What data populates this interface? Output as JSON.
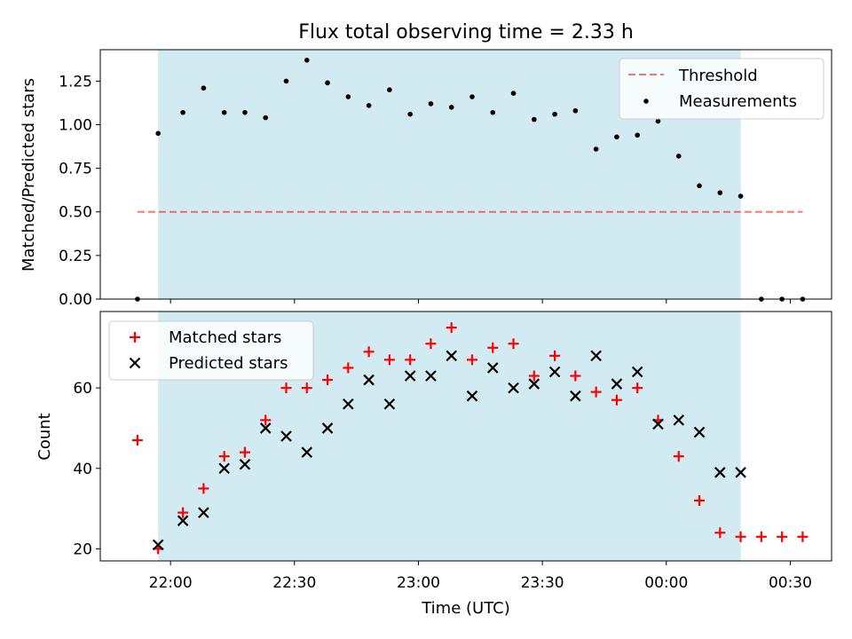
{
  "title": "Flux total observing time = 2.33 h",
  "colors": {
    "shade": "#add8e6",
    "threshold": "#ff0000",
    "measurement": "#000000",
    "matched": "#ff0000",
    "predicted": "#000000"
  },
  "chart_data": [
    {
      "type": "scatter",
      "panel": "top",
      "ylabel": "Matched/Predicted stars",
      "ylim": [
        0,
        1.43
      ],
      "yticks": [
        0.0,
        0.25,
        0.5,
        0.75,
        1.0,
        1.25
      ],
      "ytick_labels": [
        "0.00",
        "0.25",
        "0.50",
        "0.75",
        "1.00",
        "1.25"
      ],
      "shaded_span": [
        "21:57",
        "00:18"
      ],
      "legend_position": "upper right",
      "threshold": {
        "name": "Threshold",
        "value": 0.5,
        "x_range": [
          "21:52",
          "00:33"
        ]
      },
      "series": [
        {
          "name": "Measurements",
          "x": [
            "21:52",
            "21:57",
            "22:03",
            "22:08",
            "22:13",
            "22:18",
            "22:23",
            "22:28",
            "22:33",
            "22:38",
            "22:43",
            "22:48",
            "22:53",
            "22:58",
            "23:03",
            "23:08",
            "23:13",
            "23:18",
            "23:23",
            "23:28",
            "23:33",
            "23:38",
            "23:43",
            "23:48",
            "23:53",
            "23:58",
            "00:03",
            "00:08",
            "00:13",
            "00:18",
            "00:23",
            "00:28",
            "00:33"
          ],
          "y": [
            0.0,
            0.95,
            1.07,
            1.21,
            1.07,
            1.07,
            1.04,
            1.25,
            1.37,
            1.24,
            1.16,
            1.11,
            1.2,
            1.06,
            1.12,
            1.1,
            1.16,
            1.07,
            1.18,
            1.03,
            1.06,
            1.08,
            0.86,
            0.93,
            0.94,
            1.02,
            0.82,
            0.65,
            0.61,
            0.59,
            0.0,
            0.0,
            0.0
          ]
        }
      ]
    },
    {
      "type": "scatter",
      "panel": "bottom",
      "xlabel": "Time (UTC)",
      "ylabel": "Count",
      "ylim": [
        17,
        79
      ],
      "yticks": [
        20,
        40,
        60
      ],
      "ytick_labels": [
        "20",
        "40",
        "60"
      ],
      "xlim": [
        "21:43",
        "00:40"
      ],
      "xticks": [
        "22:00",
        "22:30",
        "23:00",
        "23:30",
        "00:00",
        "00:30"
      ],
      "xtick_labels": [
        "22:00",
        "22:30",
        "23:00",
        "23:30",
        "00:00",
        "00:30"
      ],
      "shaded_span": [
        "21:57",
        "00:18"
      ],
      "legend_position": "upper left",
      "series": [
        {
          "name": "Matched stars",
          "marker": "+",
          "x": [
            "21:52",
            "21:57",
            "22:03",
            "22:08",
            "22:13",
            "22:18",
            "22:23",
            "22:28",
            "22:33",
            "22:38",
            "22:43",
            "22:48",
            "22:53",
            "22:58",
            "23:03",
            "23:08",
            "23:13",
            "23:18",
            "23:23",
            "23:28",
            "23:33",
            "23:38",
            "23:43",
            "23:48",
            "23:53",
            "23:58",
            "00:03",
            "00:08",
            "00:13",
            "00:18",
            "00:23",
            "00:28",
            "00:33"
          ],
          "y": [
            47,
            20,
            29,
            35,
            43,
            44,
            52,
            60,
            60,
            62,
            65,
            69,
            67,
            67,
            71,
            75,
            67,
            70,
            71,
            63,
            68,
            63,
            59,
            57,
            60,
            52,
            43,
            32,
            24,
            23,
            23,
            23,
            23
          ]
        },
        {
          "name": "Predicted stars",
          "marker": "x",
          "x": [
            "21:57",
            "22:03",
            "22:08",
            "22:13",
            "22:18",
            "22:23",
            "22:28",
            "22:33",
            "22:38",
            "22:43",
            "22:48",
            "22:53",
            "22:58",
            "23:03",
            "23:08",
            "23:13",
            "23:18",
            "23:23",
            "23:28",
            "23:33",
            "23:38",
            "23:43",
            "23:48",
            "23:53",
            "23:58",
            "00:03",
            "00:08",
            "00:13",
            "00:18"
          ],
          "y": [
            21,
            27,
            29,
            40,
            41,
            50,
            48,
            44,
            50,
            56,
            62,
            56,
            63,
            63,
            68,
            58,
            65,
            60,
            61,
            64,
            58,
            68,
            61,
            64,
            51,
            52,
            49,
            39,
            39
          ]
        }
      ]
    }
  ]
}
